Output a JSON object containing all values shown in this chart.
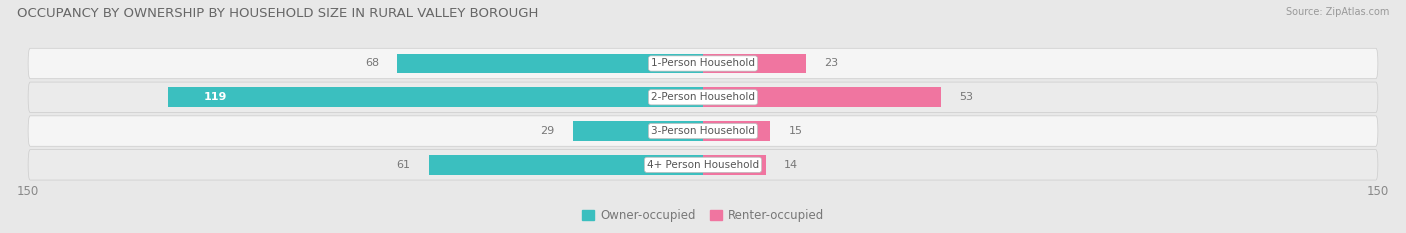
{
  "title": "OCCUPANCY BY OWNERSHIP BY HOUSEHOLD SIZE IN RURAL VALLEY BOROUGH",
  "source": "Source: ZipAtlas.com",
  "categories": [
    "1-Person Household",
    "2-Person Household",
    "3-Person Household",
    "4+ Person Household"
  ],
  "owner_values": [
    68,
    119,
    29,
    61
  ],
  "renter_values": [
    23,
    53,
    15,
    14
  ],
  "axis_max": 150,
  "owner_color": "#3BBFBF",
  "renter_color": "#F075A0",
  "bg_color": "#e8e8e8",
  "row_bg_even": "#f5f5f5",
  "row_bg_odd": "#ebebeb",
  "legend_owner": "Owner-occupied",
  "legend_renter": "Renter-occupied",
  "title_fontsize": 9.5,
  "bar_height": 0.58
}
